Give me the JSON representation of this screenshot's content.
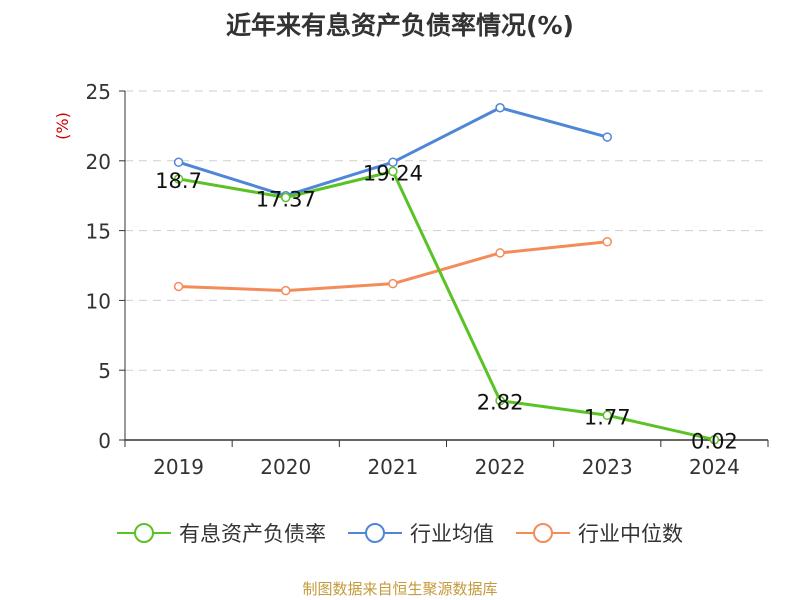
{
  "chart_data": {
    "type": "line",
    "title": "近年来有息资产负债率情况(%)",
    "ylabel": "(%)",
    "ylim": [
      0,
      25
    ],
    "yticks": [
      0,
      5,
      10,
      15,
      20,
      25
    ],
    "categories": [
      "2019",
      "2020",
      "2021",
      "2022",
      "2023",
      "2024"
    ],
    "grid": true,
    "legend_position": "bottom",
    "series": [
      {
        "name": "有息资产负债率",
        "color": "#5bc225",
        "values": [
          18.7,
          17.37,
          19.24,
          2.82,
          1.77,
          0.02
        ],
        "labels": [
          "18.7",
          "17.37",
          "19.24",
          "2.82",
          "1.77",
          "0.02"
        ]
      },
      {
        "name": "行业均值",
        "color": "#4f86d6",
        "values": [
          19.9,
          17.5,
          19.9,
          23.8,
          21.7,
          null
        ]
      },
      {
        "name": "行业中位数",
        "color": "#f48c5a",
        "values": [
          11.0,
          10.7,
          11.2,
          13.4,
          14.2,
          null
        ]
      }
    ]
  },
  "source": "制图数据来自恒生聚源数据库"
}
